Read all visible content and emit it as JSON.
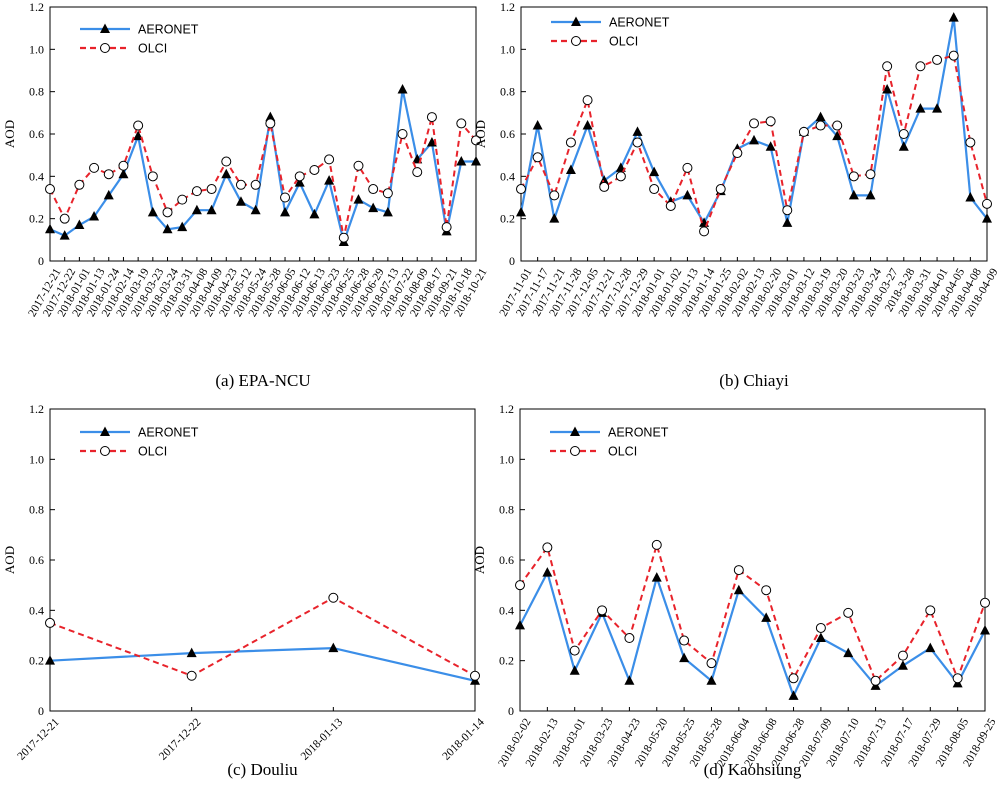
{
  "colors": {
    "aeronet": "#3b8ee8",
    "olci": "#e8232b",
    "axis": "#000000"
  },
  "chart_data": [
    {
      "type": "line",
      "caption": "(a) EPA-NCU",
      "ylabel": "AOD",
      "ylim": [
        0,
        1.2
      ],
      "yticks": [
        "0",
        "0.2",
        "0.4",
        "0.6",
        "0.8",
        "1.0",
        "1.2"
      ],
      "legend_position": "top-left",
      "categories": [
        "2017-12-21",
        "2017-12-22",
        "2018-01-01",
        "2018-01-13",
        "2018-01-24",
        "2018-02-14",
        "2018-03-19",
        "2018-03-23",
        "2018-03-24",
        "2018-03-31",
        "2018-04-08",
        "2018-04-09",
        "2018-04-23",
        "2018-05-12",
        "2018-05-24",
        "2018-05-28",
        "2018-06-05",
        "2018-06-12",
        "2018-06-13",
        "2018-06-23",
        "2018-06-25",
        "2018-06-28",
        "2018-06-29",
        "2018-07-13",
        "2018-07-22",
        "2018-08-09",
        "2018-08-17",
        "2018-09-21",
        "2018-10-18",
        "2018-10-21"
      ],
      "series": [
        {
          "name": "AERONET",
          "values": [
            0.15,
            0.12,
            0.17,
            0.21,
            0.31,
            0.41,
            0.59,
            0.23,
            0.15,
            0.16,
            0.24,
            0.24,
            0.41,
            0.28,
            0.24,
            0.68,
            0.23,
            0.37,
            0.22,
            0.38,
            0.09,
            0.29,
            0.25,
            0.23,
            0.81,
            0.48,
            0.56,
            0.14,
            0.47,
            0.47
          ]
        },
        {
          "name": "OLCI",
          "values": [
            0.34,
            0.2,
            0.36,
            0.44,
            0.41,
            0.45,
            0.64,
            0.4,
            0.23,
            0.29,
            0.33,
            0.34,
            0.47,
            0.36,
            0.36,
            0.65,
            0.3,
            0.4,
            0.43,
            0.48,
            0.11,
            0.45,
            0.34,
            0.32,
            0.6,
            0.42,
            0.68,
            0.16,
            0.65,
            0.57
          ]
        }
      ]
    },
    {
      "type": "line",
      "caption": "(b) Chiayi",
      "ylabel": "AOD",
      "ylim": [
        0,
        1.2
      ],
      "yticks": [
        "0",
        "0.2",
        "0.4",
        "0.6",
        "0.8",
        "1.0",
        "1.2"
      ],
      "legend_position": "top-left",
      "categories": [
        "2017-11-01",
        "2017-11-17",
        "2017-11-21",
        "2017-11-28",
        "2017-12-05",
        "2017-12-21",
        "2017-12-28",
        "2017-12-29",
        "2018-01-01",
        "2018-01-02",
        "2018-01-13",
        "2018-01-14",
        "2018-01-25",
        "2018-02-02",
        "2018-02-13",
        "2018-02-20",
        "2018-03-01",
        "2018-03-12",
        "2018-03-19",
        "2018-03-20",
        "2018-03-23",
        "2018-03-24",
        "2018-03-27",
        "2018-3-28",
        "2018-03-31",
        "2018-04-01",
        "2018-04-05",
        "2018-04-08",
        "2018-04-09"
      ],
      "series": [
        {
          "name": "AERONET",
          "values": [
            0.23,
            0.64,
            0.2,
            0.43,
            0.64,
            0.38,
            0.44,
            0.61,
            0.42,
            0.28,
            0.31,
            0.18,
            0.33,
            0.53,
            0.57,
            0.54,
            0.18,
            0.61,
            0.68,
            0.59,
            0.31,
            0.31,
            0.81,
            0.54,
            0.72,
            0.72,
            1.15,
            0.3,
            0.2
          ]
        },
        {
          "name": "OLCI",
          "values": [
            0.34,
            0.49,
            0.31,
            0.56,
            0.76,
            0.35,
            0.4,
            0.56,
            0.34,
            0.26,
            0.44,
            0.14,
            0.34,
            0.51,
            0.65,
            0.66,
            0.24,
            0.61,
            0.64,
            0.64,
            0.4,
            0.41,
            0.92,
            0.6,
            0.92,
            0.95,
            0.97,
            0.56,
            0.27
          ]
        }
      ]
    },
    {
      "type": "line",
      "caption": "(c) Douliu",
      "ylabel": "AOD",
      "ylim": [
        0,
        1.2
      ],
      "yticks": [
        "0",
        "0.2",
        "0.4",
        "0.6",
        "0.8",
        "1.0",
        "1.2"
      ],
      "legend_position": "top-left",
      "categories": [
        "2017-12-21",
        "2017-12-22",
        "2018-01-13",
        "2018-01-14"
      ],
      "series": [
        {
          "name": "AERONET",
          "values": [
            0.2,
            0.23,
            0.25,
            0.12
          ]
        },
        {
          "name": "OLCI",
          "values": [
            0.35,
            0.14,
            0.45,
            0.14
          ]
        }
      ]
    },
    {
      "type": "line",
      "caption": "(d) Kaohsiung",
      "ylabel": "AOD",
      "ylim": [
        0,
        1.2
      ],
      "yticks": [
        "0",
        "0.2",
        "0.4",
        "0.6",
        "0.8",
        "1.0",
        "1.2"
      ],
      "legend_position": "top-left",
      "categories": [
        "2018-02-02",
        "2018-02-13",
        "2018-03-01",
        "2018-03-23",
        "2018-04-23",
        "2018-05-20",
        "2018-05-25",
        "2018-05-28",
        "2018-06-04",
        "2018-06-08",
        "2018-06-28",
        "2018-07-09",
        "2018-07-10",
        "2018-07-13",
        "2018-07-17",
        "2018-07-29",
        "2018-08-05",
        "2018-09-25"
      ],
      "series": [
        {
          "name": "AERONET",
          "values": [
            0.34,
            0.55,
            0.16,
            0.39,
            0.12,
            0.53,
            0.21,
            0.12,
            0.48,
            0.37,
            0.06,
            0.29,
            0.23,
            0.1,
            0.18,
            0.25,
            0.11,
            0.32
          ]
        },
        {
          "name": "OLCI",
          "values": [
            0.5,
            0.65,
            0.24,
            0.4,
            0.29,
            0.66,
            0.28,
            0.19,
            0.56,
            0.48,
            0.13,
            0.33,
            0.39,
            0.12,
            0.22,
            0.4,
            0.13,
            0.43
          ]
        }
      ]
    }
  ]
}
